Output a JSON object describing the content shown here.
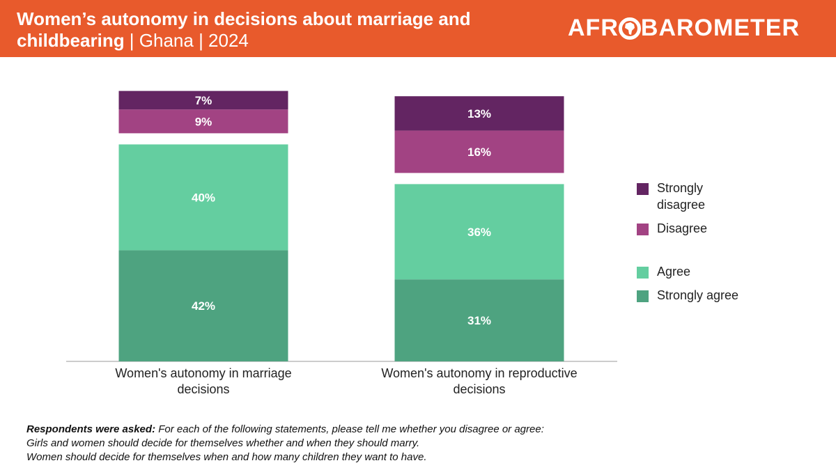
{
  "header": {
    "title_main": "Women’s autonomy in decisions about marriage and childbearing",
    "title_sub": " | Ghana | 2024",
    "logo_left": "AFR",
    "logo_right": "BAROMETER",
    "logo_icon": "africa-in-o-icon"
  },
  "colors": {
    "header_bg": "#E85A2C",
    "strongly_disagree": "#632562",
    "disagree": "#A24383",
    "agree": "#64CEA0",
    "strongly_agree": "#4EA380"
  },
  "chart_data": {
    "type": "bar",
    "stacked": true,
    "categories": [
      "Women's autonomy in marriage decisions",
      "Women's autonomy in reproductive decisions"
    ],
    "series": [
      {
        "name": "Strongly agree",
        "values": [
          42,
          31
        ],
        "labels": [
          "42%",
          "31%"
        ]
      },
      {
        "name": "Agree",
        "values": [
          40,
          36
        ],
        "labels": [
          "40%",
          "36%"
        ]
      },
      {
        "name": "Disagree",
        "values": [
          9,
          16
        ],
        "labels": [
          "9%",
          "16%"
        ]
      },
      {
        "name": "Strongly disagree",
        "values": [
          7,
          13
        ],
        "labels": [
          "7%",
          "13%"
        ]
      }
    ],
    "legend": [
      "Strongly disagree",
      "Disagree",
      "Agree",
      "Strongly agree"
    ],
    "legend_position": "right",
    "grid": false,
    "xlabel": "",
    "ylabel": ""
  },
  "note": {
    "bold": "Respondents were asked:",
    "intro": " For each of the following statements, please tell me whether you disagree or agree:",
    "line1": "Girls and women should decide for themselves whether and when they should marry.",
    "line2": "Women should decide for themselves when and how many children they want to have."
  }
}
